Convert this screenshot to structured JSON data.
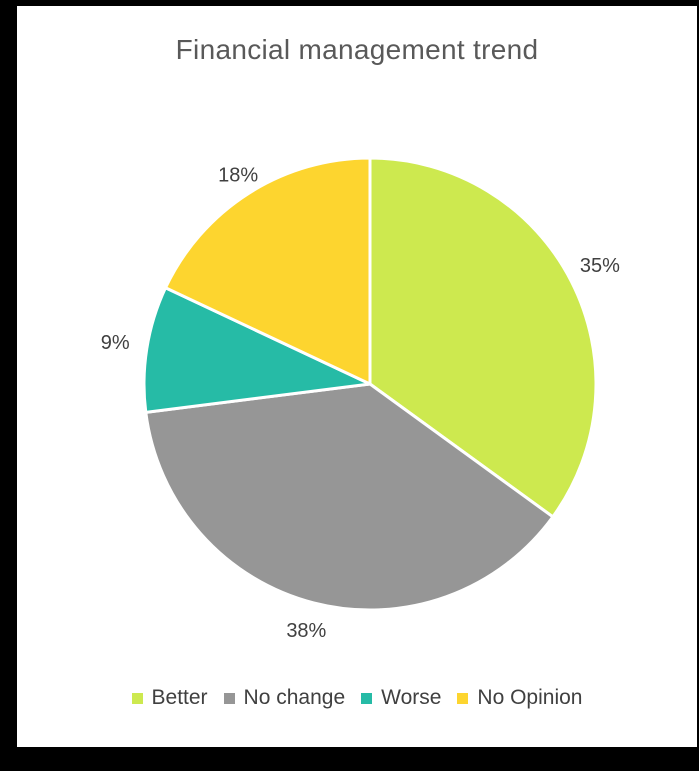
{
  "chart_data": {
    "type": "pie",
    "title": "Financial management trend",
    "categories": [
      "Better",
      "No change",
      "Worse",
      "No Opinion"
    ],
    "values": [
      35,
      38,
      9,
      18
    ],
    "data_labels": [
      "35%",
      "38%",
      "9%",
      "18%"
    ],
    "colors": [
      "#cde94f",
      "#969696",
      "#26bba6",
      "#fdd52f"
    ],
    "start_angle_deg": 0,
    "direction": "clockwise",
    "legend_position": "bottom",
    "slice_border_color": "#ffffff"
  }
}
